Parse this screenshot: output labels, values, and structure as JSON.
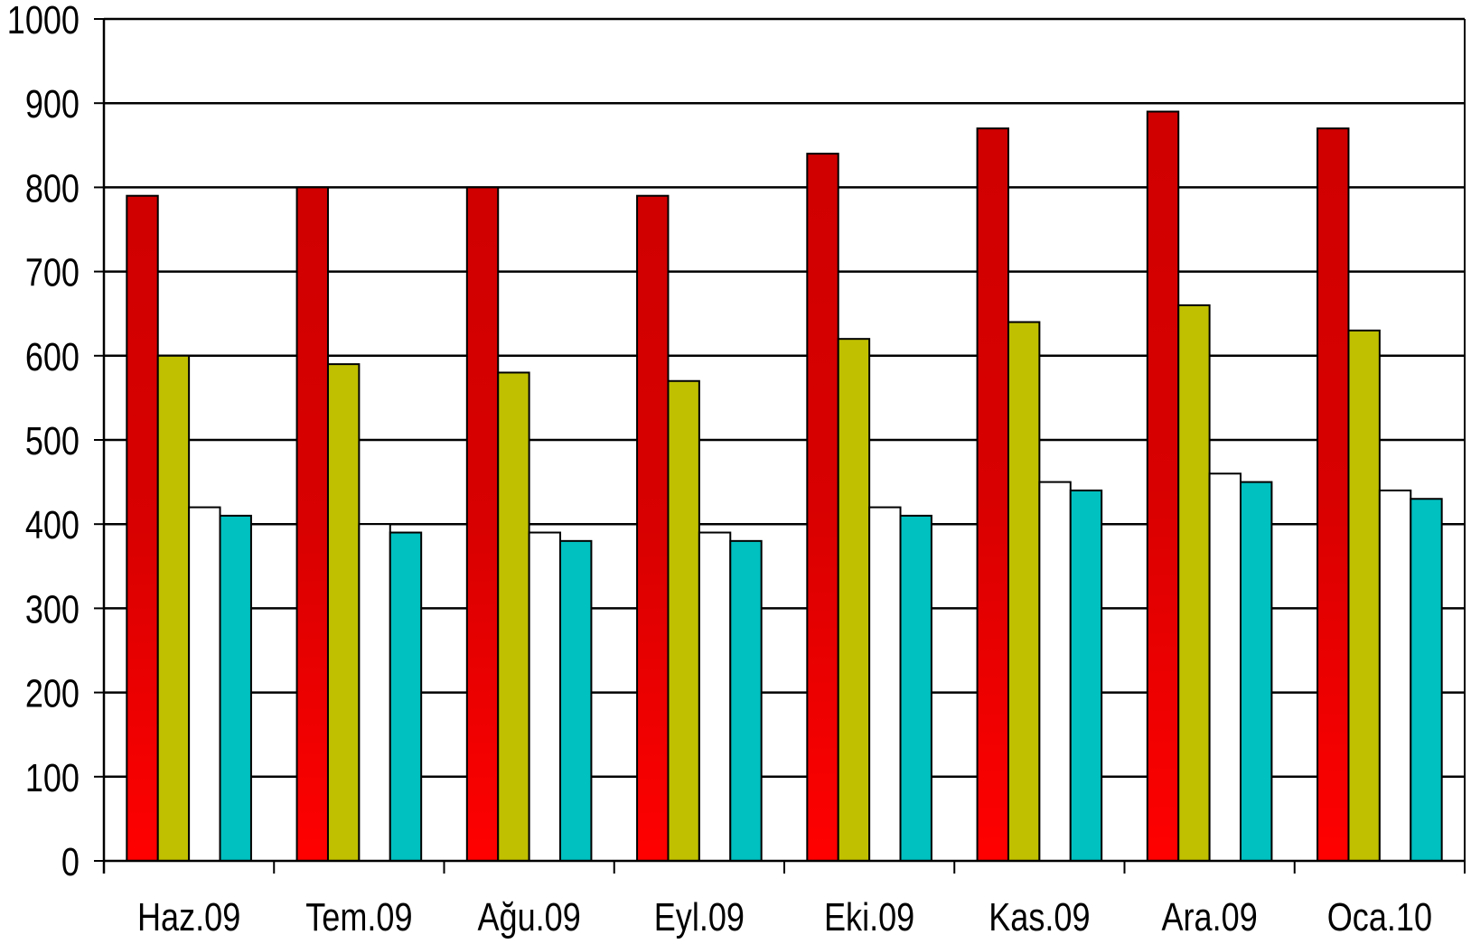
{
  "chart_data": {
    "type": "bar",
    "categories": [
      "Haz.09",
      "Tem.09",
      "Ağu.09",
      "Eyl.09",
      "Eki.09",
      "Kas.09",
      "Ara.09",
      "Oca.10"
    ],
    "series": [
      {
        "color": "#d80000",
        "gradient": [
          "#d00000",
          "#d80000",
          "#ff0000"
        ],
        "values": [
          790,
          800,
          800,
          790,
          840,
          870,
          890,
          870
        ]
      },
      {
        "color": "#c0c000",
        "values": [
          600,
          590,
          580,
          570,
          620,
          640,
          660,
          630
        ]
      },
      {
        "color": "#ffffff",
        "values": [
          420,
          400,
          390,
          390,
          420,
          450,
          460,
          440
        ]
      },
      {
        "color": "#00c0c0",
        "values": [
          410,
          390,
          380,
          380,
          410,
          440,
          450,
          430
        ]
      }
    ],
    "ylim": [
      0,
      1000
    ],
    "yticks": [
      0,
      100,
      200,
      300,
      400,
      500,
      600,
      700,
      800,
      900,
      1000
    ],
    "grid": true,
    "legend": false
  }
}
